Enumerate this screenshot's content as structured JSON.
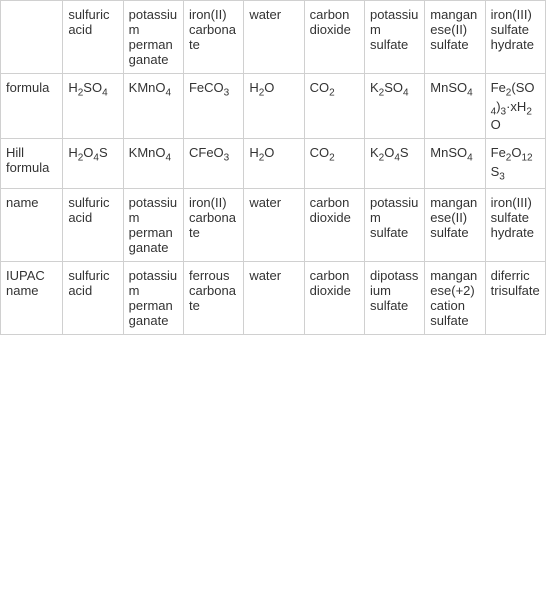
{
  "table": {
    "type": "table",
    "background_color": "#ffffff",
    "border_color": "#d0d0d0",
    "text_color": "#333333",
    "font_size": 13,
    "column_headers": [
      "",
      "sulfuric acid",
      "potassium permanganate",
      "iron(II) carbonate",
      "water",
      "carbon dioxide",
      "potassium sulfate",
      "manganese(II) sulfate",
      "iron(III) sulfate hydrate"
    ],
    "row_headers": [
      "formula",
      "Hill formula",
      "name",
      "IUPAC name"
    ],
    "rows": [
      {
        "label": "formula",
        "cells_html": [
          "H<sub>2</sub>SO<sub>4</sub>",
          "KMnO<sub>4</sub>",
          "FeCO<sub>3</sub>",
          "H<sub>2</sub>O",
          "CO<sub>2</sub>",
          "K<sub>2</sub>SO<sub>4</sub>",
          "MnSO<sub>4</sub>",
          "Fe<sub>2</sub>(SO<sub>4</sub>)<sub>3</sub>·xH<sub>2</sub>O"
        ]
      },
      {
        "label": "Hill formula",
        "cells_html": [
          "H<sub>2</sub>O<sub>4</sub>S",
          "KMnO<sub>4</sub>",
          "CFeO<sub>3</sub>",
          "H<sub>2</sub>O",
          "CO<sub>2</sub>",
          "K<sub>2</sub>O<sub>4</sub>S",
          "MnSO<sub>4</sub>",
          "Fe<sub>2</sub>O<sub>12</sub>S<sub>3</sub>"
        ]
      },
      {
        "label": "name",
        "cells_html": [
          "sulfuric acid",
          "potassium permanganate",
          "iron(II) carbonate",
          "water",
          "carbon dioxide",
          "potassium sulfate",
          "manganese(II) sulfate",
          "iron(III) sulfate hydrate"
        ]
      },
      {
        "label": "IUPAC name",
        "cells_html": [
          "sulfuric acid",
          "potassium permanganate",
          "ferrous carbonate",
          "water",
          "carbon dioxide",
          "dipotassium sulfate",
          "manganese(+2) cation sulfate",
          "diferric trisulfate"
        ]
      }
    ]
  }
}
